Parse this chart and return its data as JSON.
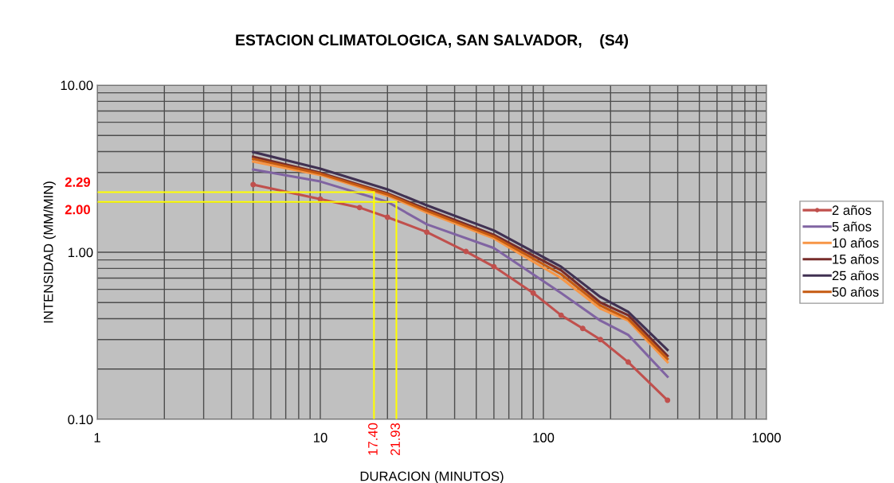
{
  "chart_data": {
    "type": "line",
    "title": "ESTACION CLIMATOLOGICA, SAN SALVADOR,    (S4)",
    "xlabel": "DURACION (MINUTOS)",
    "ylabel": "INTENSIDAD (MM/MIN)",
    "log": "xy",
    "grid": true,
    "legend": "right",
    "marker": "none",
    "line_style": "solid",
    "xlim": [
      1,
      1000
    ],
    "xticks": [
      1,
      10,
      100,
      1000
    ],
    "ylim": [
      0.1,
      10
    ],
    "yticks": [
      {
        "value": 0.1,
        "label": "0.10"
      },
      {
        "value": 1,
        "label": "1.00"
      },
      {
        "value": 10,
        "label": "10.00"
      }
    ],
    "series": [
      {
        "name": "2 años",
        "color": "#c0504d",
        "marker": "circle",
        "x": [
          5,
          10,
          15,
          20,
          30,
          45,
          60,
          90,
          120,
          150,
          180,
          240,
          360
        ],
        "values": [
          2.54,
          2.08,
          1.85,
          1.62,
          1.32,
          1.01,
          0.82,
          0.57,
          0.42,
          0.35,
          0.3,
          0.22,
          0.13
        ]
      },
      {
        "name": "5 años",
        "color": "#8064a2",
        "x": [
          5,
          10,
          20,
          30,
          60,
          120,
          180,
          240,
          360
        ],
        "values": [
          3.13,
          2.65,
          2.0,
          1.47,
          1.06,
          0.57,
          0.39,
          0.32,
          0.18
        ]
      },
      {
        "name": "10 años",
        "color": "#f79646",
        "x": [
          5,
          10,
          20,
          30,
          60,
          120,
          180,
          240,
          360
        ],
        "values": [
          3.49,
          2.9,
          2.18,
          1.73,
          1.21,
          0.7,
          0.46,
          0.39,
          0.22
        ]
      },
      {
        "name": "15 años",
        "color": "#772c2a",
        "x": [
          5,
          10,
          20,
          30,
          60,
          120,
          180,
          240,
          360
        ],
        "values": [
          3.73,
          2.99,
          2.25,
          1.81,
          1.27,
          0.78,
          0.5,
          0.42,
          0.24
        ]
      },
      {
        "name": "25 años",
        "color": "#403152",
        "x": [
          5,
          10,
          20,
          30,
          60,
          120,
          180,
          240,
          360
        ],
        "values": [
          3.98,
          3.16,
          2.38,
          1.91,
          1.35,
          0.82,
          0.54,
          0.44,
          0.26
        ]
      },
      {
        "name": "50 años",
        "color": "#c55a11",
        "x": [
          5,
          10,
          20,
          30,
          60,
          120,
          180,
          240,
          360
        ],
        "values": [
          3.62,
          2.95,
          2.22,
          1.77,
          1.24,
          0.74,
          0.48,
          0.4,
          0.23
        ]
      }
    ],
    "ref_lines": [
      {
        "axis": "y",
        "value": 2.29,
        "label": "2.29",
        "color": "#ffff00"
      },
      {
        "axis": "y",
        "value": 2.0,
        "label": "2.00",
        "color": "#ffff00"
      },
      {
        "axis": "x",
        "value": 17.4,
        "label": "17.40",
        "color": "#ffff00"
      },
      {
        "axis": "x",
        "value": 21.93,
        "label": "21.93",
        "color": "#ffff00"
      }
    ]
  }
}
